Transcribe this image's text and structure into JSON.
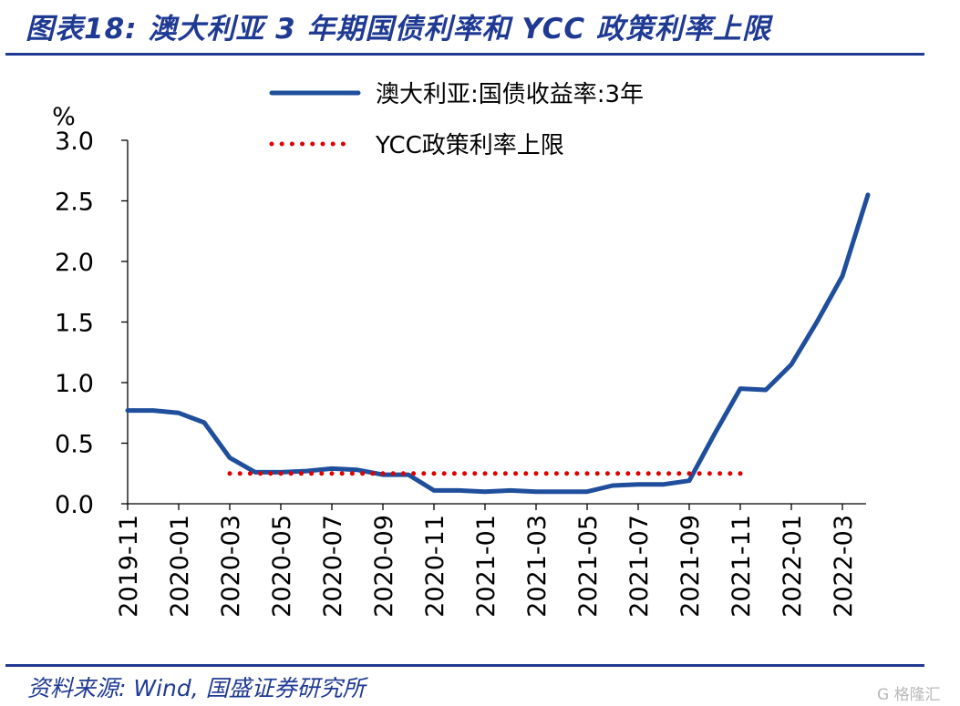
{
  "header": {
    "title": "图表18:  澳大利亚 3 年期国债利率和 YCC 政策利率上限"
  },
  "footer": {
    "source": "资料来源: Wind, 国盛证券研究所",
    "watermark": "G 格隆汇"
  },
  "chart_data": {
    "type": "line",
    "ylabel": "%",
    "ylim": [
      0,
      3.0
    ],
    "yticks": [
      "0.0",
      "0.5",
      "1.0",
      "1.5",
      "2.0",
      "2.5",
      "3.0"
    ],
    "xlabels": [
      "2019-11",
      "2020-01",
      "2020-03",
      "2020-05",
      "2020-07",
      "2020-09",
      "2020-11",
      "2021-01",
      "2021-03",
      "2021-05",
      "2021-07",
      "2021-09",
      "2021-11",
      "2022-01",
      "2022-03"
    ],
    "legend_position": "top-right",
    "x": [
      "2019-11",
      "2019-12",
      "2020-01",
      "2020-02",
      "2020-03",
      "2020-04",
      "2020-05",
      "2020-06",
      "2020-07",
      "2020-08",
      "2020-09",
      "2020-10",
      "2020-11",
      "2020-12",
      "2021-01",
      "2021-02",
      "2021-03",
      "2021-04",
      "2021-05",
      "2021-06",
      "2021-07",
      "2021-08",
      "2021-09",
      "2021-10",
      "2021-11",
      "2021-12",
      "2022-01",
      "2022-02",
      "2022-03",
      "2022-04"
    ],
    "series": [
      {
        "name": "澳大利亚:国债收益率:3年",
        "color": "#1f4e9c",
        "style": "solid",
        "values": [
          0.77,
          0.77,
          0.75,
          0.67,
          0.38,
          0.26,
          0.26,
          0.27,
          0.29,
          0.28,
          0.24,
          0.24,
          0.11,
          0.11,
          0.1,
          0.11,
          0.1,
          0.1,
          0.1,
          0.15,
          0.16,
          0.16,
          0.19,
          0.58,
          0.95,
          0.94,
          1.15,
          1.5,
          1.88,
          2.55
        ]
      },
      {
        "name": "YCC政策利率上限",
        "color": "#e00000",
        "style": "dotted",
        "values": [
          null,
          null,
          null,
          null,
          0.25,
          0.25,
          0.25,
          0.25,
          0.25,
          0.25,
          0.25,
          0.25,
          0.25,
          0.25,
          0.25,
          0.25,
          0.25,
          0.25,
          0.25,
          0.25,
          0.25,
          0.25,
          0.25,
          0.25,
          0.25,
          null,
          null,
          null,
          null,
          null
        ]
      }
    ]
  }
}
